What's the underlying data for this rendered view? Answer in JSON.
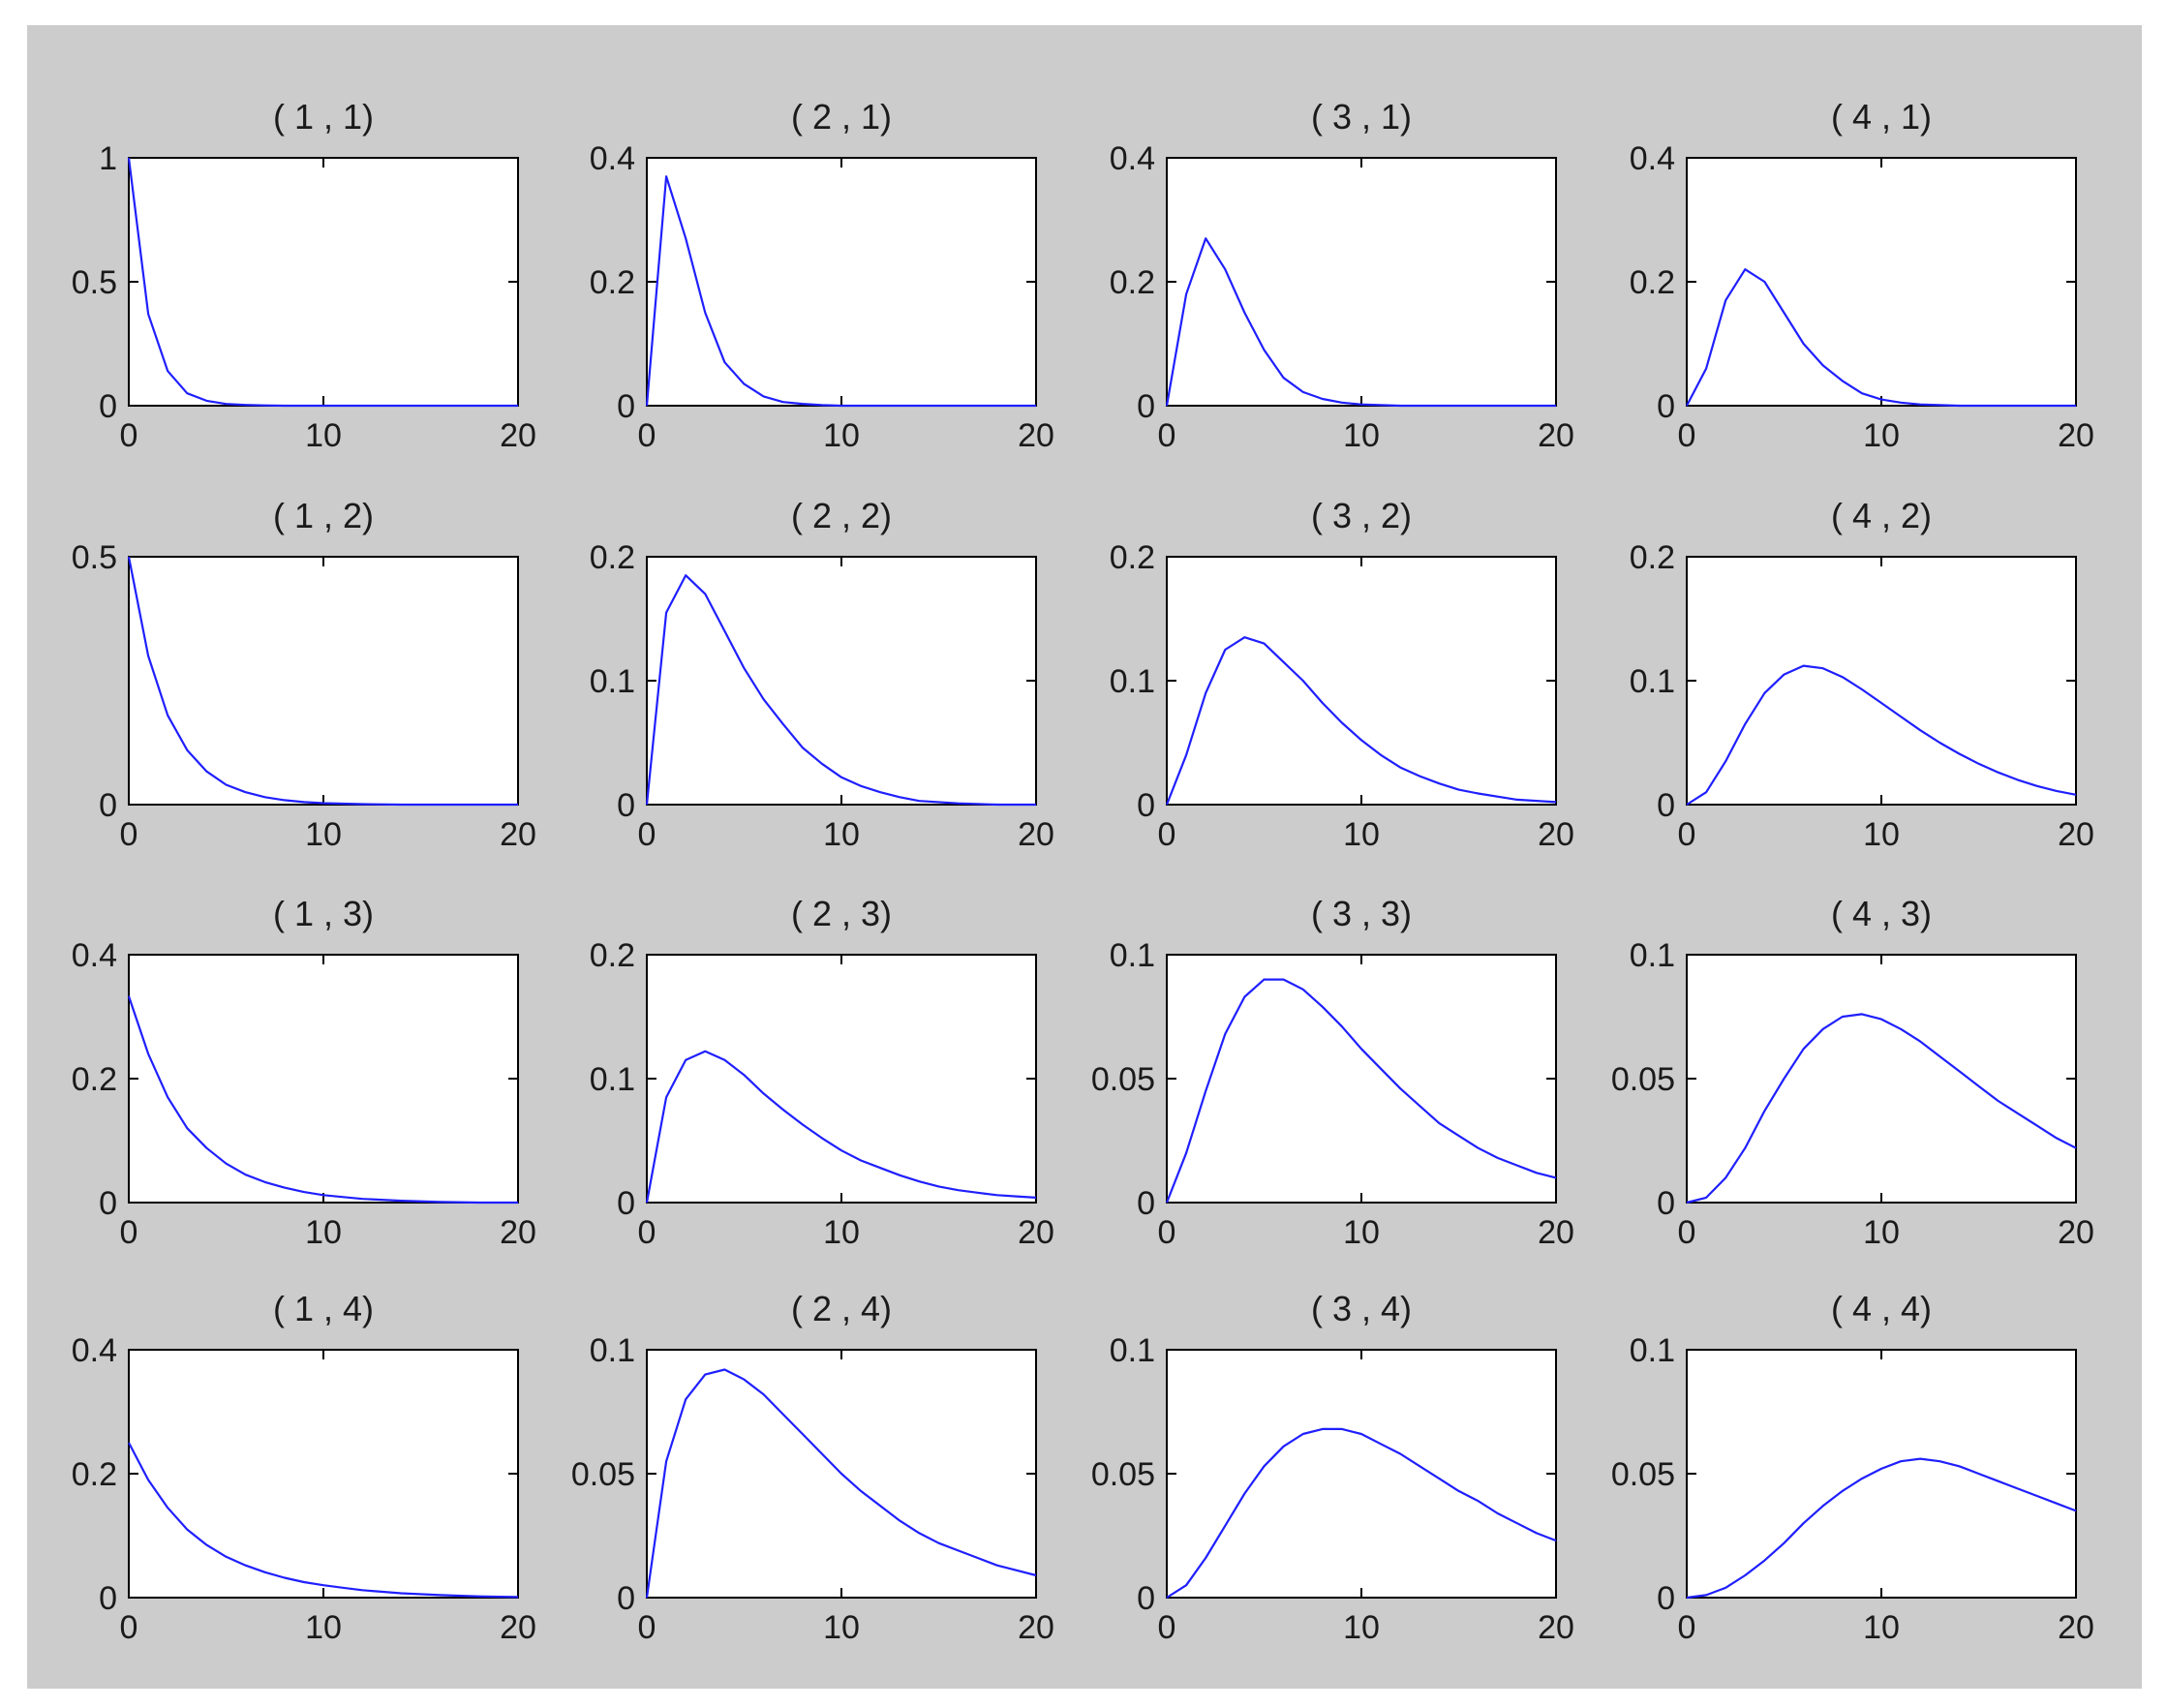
{
  "figure": {
    "background": "#cccccc",
    "axes_background": "#ffffff",
    "line_color": "#1f1fff"
  },
  "chart_data": [
    {
      "type": "line",
      "title": "( 1 , 1)",
      "xlim": [
        0,
        20
      ],
      "ylim": [
        0,
        1
      ],
      "xticks": [
        "0",
        "10",
        "20"
      ],
      "yticks": [
        "0",
        "0.5",
        "1"
      ],
      "grid": false,
      "series": [
        {
          "x": [
            0,
            1,
            2,
            3,
            4,
            5,
            6,
            7,
            8,
            10,
            12,
            14,
            16,
            18,
            20
          ],
          "y": [
            1,
            0.37,
            0.14,
            0.05,
            0.02,
            0.007,
            0.003,
            0.001,
            0,
            0,
            0,
            0,
            0,
            0,
            0
          ]
        }
      ]
    },
    {
      "type": "line",
      "title": "( 2 , 1)",
      "xlim": [
        0,
        20
      ],
      "ylim": [
        0,
        0.4
      ],
      "xticks": [
        "0",
        "10",
        "20"
      ],
      "yticks": [
        "0",
        "0.2",
        "0.4"
      ],
      "grid": false,
      "series": [
        {
          "x": [
            0,
            1,
            2,
            3,
            4,
            5,
            6,
            7,
            8,
            9,
            10,
            12,
            14,
            16,
            18,
            20
          ],
          "y": [
            0,
            0.37,
            0.27,
            0.15,
            0.07,
            0.035,
            0.015,
            0.006,
            0.003,
            0.001,
            0,
            0,
            0,
            0,
            0,
            0
          ]
        }
      ]
    },
    {
      "type": "line",
      "title": "( 3 , 1)",
      "xlim": [
        0,
        20
      ],
      "ylim": [
        0,
        0.4
      ],
      "xticks": [
        "0",
        "10",
        "20"
      ],
      "yticks": [
        "0",
        "0.2",
        "0.4"
      ],
      "grid": false,
      "series": [
        {
          "x": [
            0,
            1,
            2,
            3,
            4,
            5,
            6,
            7,
            8,
            9,
            10,
            12,
            14,
            16,
            18,
            20
          ],
          "y": [
            0,
            0.18,
            0.27,
            0.22,
            0.15,
            0.09,
            0.045,
            0.022,
            0.011,
            0.005,
            0.002,
            0,
            0,
            0,
            0,
            0
          ]
        }
      ]
    },
    {
      "type": "line",
      "title": "( 4 , 1)",
      "xlim": [
        0,
        20
      ],
      "ylim": [
        0,
        0.4
      ],
      "xticks": [
        "0",
        "10",
        "20"
      ],
      "yticks": [
        "0",
        "0.2",
        "0.4"
      ],
      "grid": false,
      "series": [
        {
          "x": [
            0,
            1,
            2,
            3,
            4,
            5,
            6,
            7,
            8,
            9,
            10,
            11,
            12,
            14,
            16,
            18,
            20
          ],
          "y": [
            0,
            0.06,
            0.17,
            0.22,
            0.2,
            0.15,
            0.1,
            0.065,
            0.04,
            0.02,
            0.01,
            0.005,
            0.002,
            0,
            0,
            0,
            0
          ]
        }
      ]
    },
    {
      "type": "line",
      "title": "( 1 , 2)",
      "xlim": [
        0,
        20
      ],
      "ylim": [
        0,
        0.5
      ],
      "xticks": [
        "0",
        "10",
        "20"
      ],
      "yticks": [
        "0",
        "0.5"
      ],
      "grid": false,
      "series": [
        {
          "x": [
            0,
            1,
            2,
            3,
            4,
            5,
            6,
            7,
            8,
            9,
            10,
            12,
            14,
            16,
            18,
            20
          ],
          "y": [
            0.5,
            0.3,
            0.18,
            0.11,
            0.067,
            0.04,
            0.025,
            0.015,
            0.009,
            0.005,
            0.003,
            0.001,
            0,
            0,
            0,
            0
          ]
        }
      ]
    },
    {
      "type": "line",
      "title": "( 2 , 2)",
      "xlim": [
        0,
        20
      ],
      "ylim": [
        0,
        0.2
      ],
      "xticks": [
        "0",
        "10",
        "20"
      ],
      "yticks": [
        "0",
        "0.1",
        "0.2"
      ],
      "grid": false,
      "series": [
        {
          "x": [
            0,
            1,
            2,
            3,
            4,
            5,
            6,
            7,
            8,
            9,
            10,
            11,
            12,
            13,
            14,
            16,
            18,
            20
          ],
          "y": [
            0,
            0.155,
            0.185,
            0.17,
            0.14,
            0.11,
            0.085,
            0.065,
            0.046,
            0.033,
            0.022,
            0.015,
            0.01,
            0.006,
            0.003,
            0.001,
            0,
            0
          ]
        }
      ]
    },
    {
      "type": "line",
      "title": "( 3 , 2)",
      "xlim": [
        0,
        20
      ],
      "ylim": [
        0,
        0.2
      ],
      "xticks": [
        "0",
        "10",
        "20"
      ],
      "yticks": [
        "0",
        "0.1",
        "0.2"
      ],
      "grid": false,
      "series": [
        {
          "x": [
            0,
            1,
            2,
            3,
            4,
            5,
            6,
            7,
            8,
            9,
            10,
            11,
            12,
            13,
            14,
            15,
            16,
            18,
            20
          ],
          "y": [
            0,
            0.04,
            0.09,
            0.125,
            0.135,
            0.13,
            0.115,
            0.1,
            0.082,
            0.066,
            0.052,
            0.04,
            0.03,
            0.023,
            0.017,
            0.012,
            0.009,
            0.004,
            0.002
          ]
        }
      ]
    },
    {
      "type": "line",
      "title": "( 4 , 2)",
      "xlim": [
        0,
        20
      ],
      "ylim": [
        0,
        0.2
      ],
      "xticks": [
        "0",
        "10",
        "20"
      ],
      "yticks": [
        "0",
        "0.1",
        "0.2"
      ],
      "grid": false,
      "series": [
        {
          "x": [
            0,
            1,
            2,
            3,
            4,
            5,
            6,
            7,
            8,
            9,
            10,
            11,
            12,
            13,
            14,
            15,
            16,
            17,
            18,
            19,
            20
          ],
          "y": [
            0,
            0.01,
            0.035,
            0.065,
            0.09,
            0.105,
            0.112,
            0.11,
            0.103,
            0.093,
            0.082,
            0.071,
            0.06,
            0.05,
            0.041,
            0.033,
            0.026,
            0.02,
            0.015,
            0.011,
            0.008
          ]
        }
      ]
    },
    {
      "type": "line",
      "title": "( 1 , 3)",
      "xlim": [
        0,
        20
      ],
      "ylim": [
        0,
        0.4
      ],
      "xticks": [
        "0",
        "10",
        "20"
      ],
      "yticks": [
        "0",
        "0.2",
        "0.4"
      ],
      "grid": false,
      "series": [
        {
          "x": [
            0,
            1,
            2,
            3,
            4,
            5,
            6,
            7,
            8,
            9,
            10,
            12,
            14,
            16,
            18,
            20
          ],
          "y": [
            0.333,
            0.24,
            0.17,
            0.12,
            0.088,
            0.063,
            0.045,
            0.033,
            0.024,
            0.017,
            0.012,
            0.006,
            0.003,
            0.001,
            0,
            0
          ]
        }
      ]
    },
    {
      "type": "line",
      "title": "( 2 , 3)",
      "xlim": [
        0,
        20
      ],
      "ylim": [
        0,
        0.2
      ],
      "xticks": [
        "0",
        "10",
        "20"
      ],
      "yticks": [
        "0",
        "0.1",
        "0.2"
      ],
      "grid": false,
      "series": [
        {
          "x": [
            0,
            1,
            2,
            3,
            4,
            5,
            6,
            7,
            8,
            9,
            10,
            11,
            12,
            13,
            14,
            15,
            16,
            17,
            18,
            19,
            20
          ],
          "y": [
            0,
            0.085,
            0.115,
            0.122,
            0.115,
            0.103,
            0.088,
            0.075,
            0.063,
            0.052,
            0.042,
            0.034,
            0.028,
            0.022,
            0.017,
            0.013,
            0.01,
            0.008,
            0.006,
            0.005,
            0.004
          ]
        }
      ]
    },
    {
      "type": "line",
      "title": "( 3 , 3)",
      "xlim": [
        0,
        20
      ],
      "ylim": [
        0,
        0.1
      ],
      "xticks": [
        "0",
        "10",
        "20"
      ],
      "yticks": [
        "0",
        "0.05",
        "0.1"
      ],
      "grid": false,
      "series": [
        {
          "x": [
            0,
            1,
            2,
            3,
            4,
            5,
            6,
            7,
            8,
            9,
            10,
            11,
            12,
            13,
            14,
            15,
            16,
            17,
            18,
            19,
            20
          ],
          "y": [
            0,
            0.02,
            0.045,
            0.068,
            0.083,
            0.09,
            0.09,
            0.086,
            0.079,
            0.071,
            0.062,
            0.054,
            0.046,
            0.039,
            0.032,
            0.027,
            0.022,
            0.018,
            0.015,
            0.012,
            0.01
          ]
        }
      ]
    },
    {
      "type": "line",
      "title": "( 4 , 3)",
      "xlim": [
        0,
        20
      ],
      "ylim": [
        0,
        0.1
      ],
      "xticks": [
        "0",
        "10",
        "20"
      ],
      "yticks": [
        "0",
        "0.05",
        "0.1"
      ],
      "grid": false,
      "series": [
        {
          "x": [
            0,
            1,
            2,
            3,
            4,
            5,
            6,
            7,
            8,
            9,
            10,
            11,
            12,
            13,
            14,
            15,
            16,
            17,
            18,
            19,
            20
          ],
          "y": [
            0,
            0.002,
            0.01,
            0.022,
            0.037,
            0.05,
            0.062,
            0.07,
            0.075,
            0.076,
            0.074,
            0.07,
            0.065,
            0.059,
            0.053,
            0.047,
            0.041,
            0.036,
            0.031,
            0.026,
            0.022
          ]
        }
      ]
    },
    {
      "type": "line",
      "title": "( 1 , 4)",
      "xlim": [
        0,
        20
      ],
      "ylim": [
        0,
        0.4
      ],
      "xticks": [
        "0",
        "10",
        "20"
      ],
      "yticks": [
        "0",
        "0.2",
        "0.4"
      ],
      "grid": false,
      "series": [
        {
          "x": [
            0,
            1,
            2,
            3,
            4,
            5,
            6,
            7,
            8,
            9,
            10,
            11,
            12,
            14,
            16,
            18,
            20
          ],
          "y": [
            0.25,
            0.19,
            0.145,
            0.11,
            0.085,
            0.066,
            0.052,
            0.041,
            0.032,
            0.025,
            0.02,
            0.016,
            0.012,
            0.007,
            0.004,
            0.002,
            0.001
          ]
        }
      ]
    },
    {
      "type": "line",
      "title": "( 2 , 4)",
      "xlim": [
        0,
        20
      ],
      "ylim": [
        0,
        0.1
      ],
      "xticks": [
        "0",
        "10",
        "20"
      ],
      "yticks": [
        "0",
        "0.05",
        "0.1"
      ],
      "grid": false,
      "series": [
        {
          "x": [
            0,
            1,
            2,
            3,
            4,
            5,
            6,
            7,
            8,
            9,
            10,
            11,
            12,
            13,
            14,
            15,
            16,
            17,
            18,
            19,
            20
          ],
          "y": [
            0,
            0.055,
            0.08,
            0.09,
            0.092,
            0.088,
            0.082,
            0.074,
            0.066,
            0.058,
            0.05,
            0.043,
            0.037,
            0.031,
            0.026,
            0.022,
            0.019,
            0.016,
            0.013,
            0.011,
            0.009
          ]
        }
      ]
    },
    {
      "type": "line",
      "title": "( 3 , 4)",
      "xlim": [
        0,
        20
      ],
      "ylim": [
        0,
        0.1
      ],
      "xticks": [
        "0",
        "10",
        "20"
      ],
      "yticks": [
        "0",
        "0.05",
        "0.1"
      ],
      "grid": false,
      "series": [
        {
          "x": [
            0,
            1,
            2,
            3,
            4,
            5,
            6,
            7,
            8,
            9,
            10,
            11,
            12,
            13,
            14,
            15,
            16,
            17,
            18,
            19,
            20
          ],
          "y": [
            0,
            0.005,
            0.016,
            0.029,
            0.042,
            0.053,
            0.061,
            0.066,
            0.068,
            0.068,
            0.066,
            0.062,
            0.058,
            0.053,
            0.048,
            0.043,
            0.039,
            0.034,
            0.03,
            0.026,
            0.023
          ]
        }
      ]
    },
    {
      "type": "line",
      "title": "( 4 , 4)",
      "xlim": [
        0,
        20
      ],
      "ylim": [
        0,
        0.1
      ],
      "xticks": [
        "0",
        "10",
        "20"
      ],
      "yticks": [
        "0",
        "0.05",
        "0.1"
      ],
      "grid": false,
      "series": [
        {
          "x": [
            0,
            1,
            2,
            3,
            4,
            5,
            6,
            7,
            8,
            9,
            10,
            11,
            12,
            13,
            14,
            15,
            16,
            17,
            18,
            19,
            20
          ],
          "y": [
            0,
            0.001,
            0.004,
            0.009,
            0.015,
            0.022,
            0.03,
            0.037,
            0.043,
            0.048,
            0.052,
            0.055,
            0.056,
            0.055,
            0.053,
            0.05,
            0.047,
            0.044,
            0.041,
            0.038,
            0.035
          ]
        }
      ]
    }
  ]
}
